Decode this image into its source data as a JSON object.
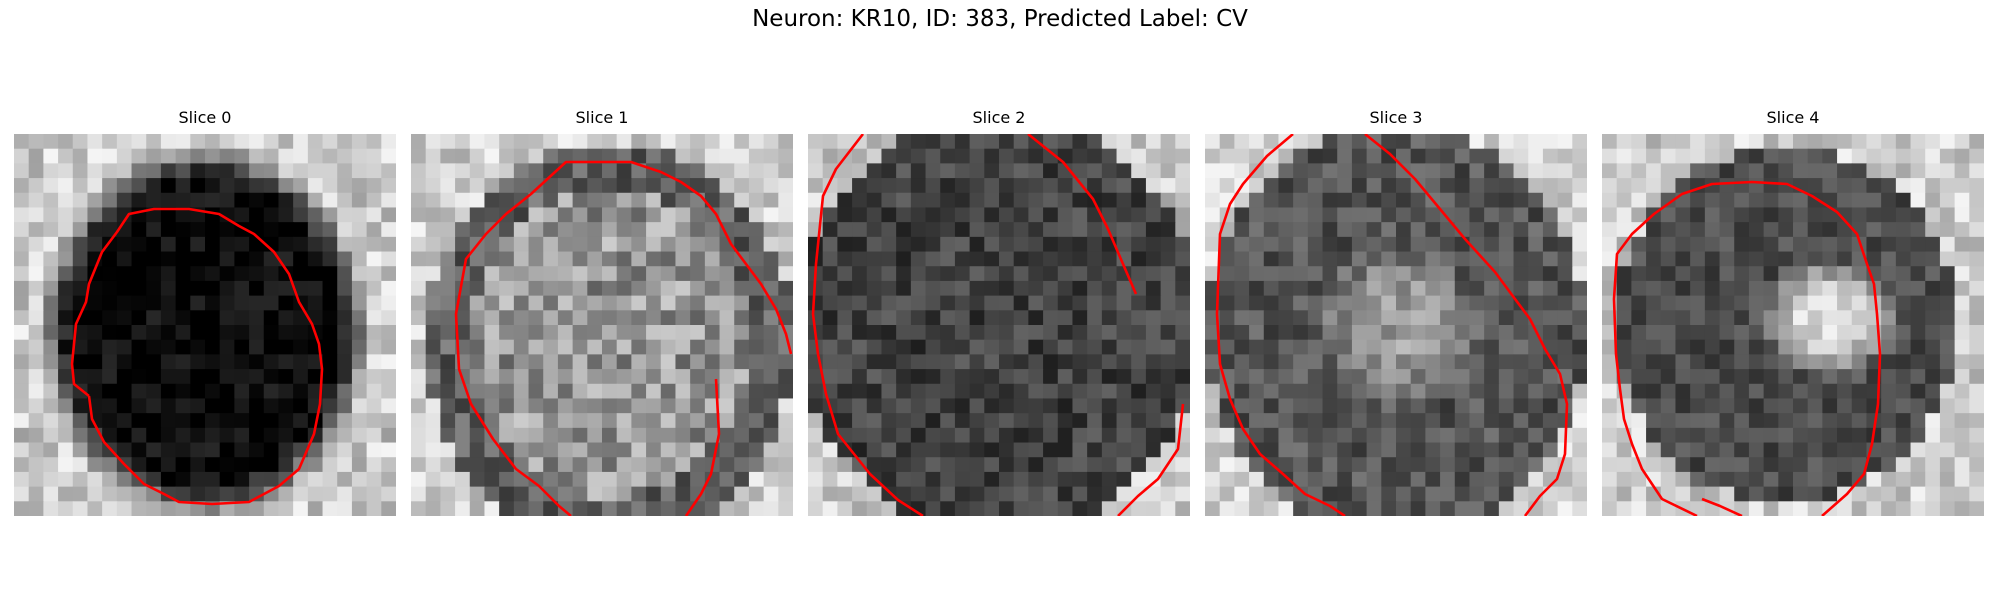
{
  "figure": {
    "title": "Neuron: KR10, ID: 383, Predicted Label: CV"
  },
  "slices": [
    {
      "title": "Slice 0"
    },
    {
      "title": "Slice 1"
    },
    {
      "title": "Slice 2"
    },
    {
      "title": "Slice 3"
    },
    {
      "title": "Slice 4"
    }
  ],
  "colors": {
    "contour": "#ff0000",
    "background": "#ffffff"
  }
}
